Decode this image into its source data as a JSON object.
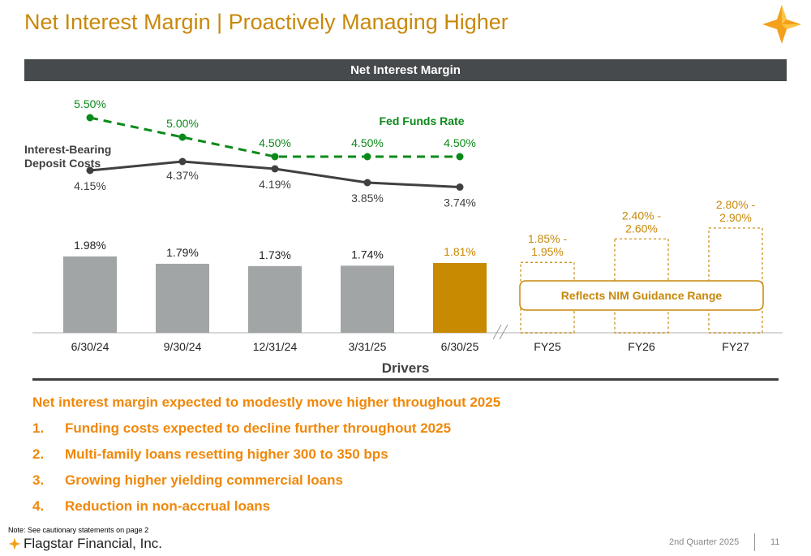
{
  "header": {
    "title": "Net Interest Margin | Proactively Managing Higher",
    "banner": "Net Interest Margin"
  },
  "colors": {
    "accent": "#c8880a",
    "gray_bar": "#a2a5a6",
    "highlight_bar": "#c88a00",
    "fed_line": "#0b8a1a",
    "deposit_line": "#404040",
    "bullet": "#f0880a"
  },
  "chart_data": {
    "type": "bar",
    "categories": [
      "6/30/24",
      "9/30/24",
      "12/31/24",
      "3/31/25",
      "6/30/25"
    ],
    "values": [
      1.98,
      1.79,
      1.73,
      1.74,
      1.81
    ],
    "value_labels": [
      "1.98%",
      "1.79%",
      "1.73%",
      "1.74%",
      "1.81%"
    ],
    "guidance": {
      "categories": [
        "FY25",
        "FY26",
        "FY27"
      ],
      "ranges": [
        [
          1.85,
          1.95
        ],
        [
          2.4,
          2.6
        ],
        [
          2.8,
          2.9
        ]
      ],
      "labels": [
        [
          "1.85% -",
          "1.95%"
        ],
        [
          "2.40% -",
          "2.60%"
        ],
        [
          "2.80% -",
          "2.90%"
        ]
      ],
      "callout": "Reflects NIM Guidance Range"
    },
    "series": [
      {
        "name": "Fed Funds Rate",
        "values": [
          5.5,
          5.0,
          4.5,
          4.5,
          4.5
        ],
        "labels": [
          "5.50%",
          "5.00%",
          "4.50%",
          "4.50%",
          "4.50%"
        ]
      },
      {
        "name_lines": [
          "Interest-Bearing",
          "Deposit Costs"
        ],
        "values": [
          4.15,
          4.37,
          4.19,
          3.85,
          3.74
        ],
        "labels": [
          "4.15%",
          "4.37%",
          "4.19%",
          "3.85%",
          "3.74%"
        ]
      }
    ],
    "xlabel": "Drivers"
  },
  "drivers": {
    "headline": "Net interest margin expected to modestly move higher throughout 2025",
    "items": [
      {
        "n": "1.",
        "text": "Funding costs expected to decline further throughout 2025"
      },
      {
        "n": "2.",
        "text": "Multi-family loans resetting higher 300 to 350 bps"
      },
      {
        "n": "3.",
        "text": "Growing higher yielding commercial loans"
      },
      {
        "n": "4.",
        "text": "Reduction in non-accrual loans"
      }
    ]
  },
  "footer": {
    "note": "Note: See cautionary statements on page 2",
    "brand": "Flagstar Financial, Inc.",
    "quarter": "2nd Quarter 2025",
    "page": "11"
  }
}
